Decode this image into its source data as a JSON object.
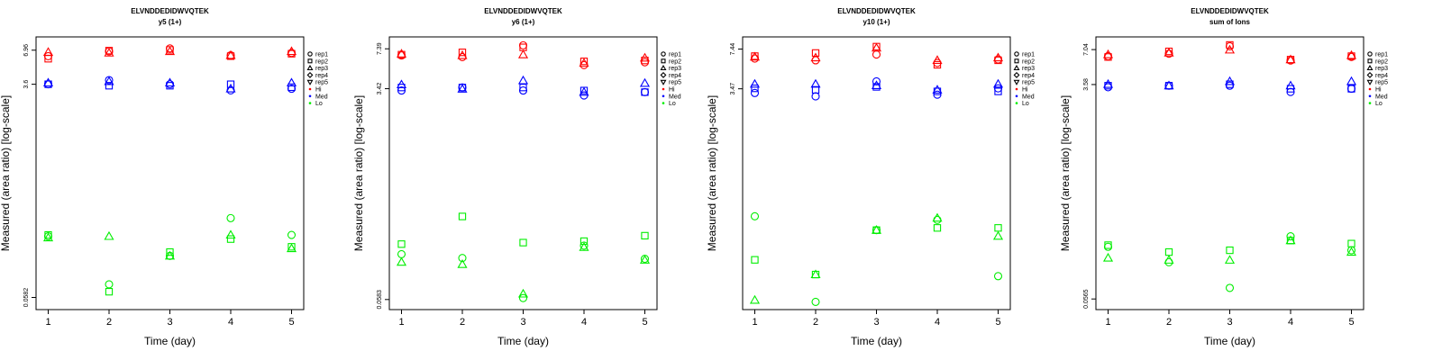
{
  "figure": {
    "colors": {
      "Hi": "#ff0000",
      "Med": "#0000ff",
      "Lo": "#00ee00"
    },
    "legend": [
      {
        "label": "rep1",
        "symbol": "circle"
      },
      {
        "label": "rep2",
        "symbol": "square"
      },
      {
        "label": "rep3",
        "symbol": "triangle-up"
      },
      {
        "label": "rep4",
        "symbol": "diamond"
      },
      {
        "label": "rep5",
        "symbol": "triangle-down"
      },
      {
        "label": "Hi",
        "symbol": "dot",
        "color": "Hi"
      },
      {
        "label": "Med",
        "symbol": "dot",
        "color": "Med"
      },
      {
        "label": "Lo",
        "symbol": "dot",
        "color": "Lo"
      }
    ]
  },
  "chart_data": [
    {
      "type": "scatter",
      "title": "ELVNDDEDIDWVQTEK",
      "subtitle": "y5 (1+)",
      "xlabel": "Time (day)",
      "ylabel": "Measured (area ratio) [log-scale]",
      "y_scale": "log",
      "x_ticks": [
        1,
        2,
        3,
        4,
        5
      ],
      "y_ticks": [
        0.0582,
        3.6,
        6.96
      ],
      "xlim": [
        0.8,
        5.2
      ],
      "ylim": [
        0.046,
        9.0
      ],
      "legend_position": "right",
      "series": [
        {
          "group": "Hi",
          "replicate": "rep1",
          "x": [
            1,
            2,
            3,
            4,
            5
          ],
          "y": [
            6.2,
            6.8,
            7.2,
            6.3,
            6.6
          ]
        },
        {
          "group": "Hi",
          "replicate": "rep2",
          "x": [
            1,
            2,
            3,
            4,
            5
          ],
          "y": [
            5.9,
            6.9,
            7.0,
            6.2,
            6.5
          ]
        },
        {
          "group": "Hi",
          "replicate": "rep3",
          "x": [
            1,
            2,
            3,
            4,
            5
          ],
          "y": [
            6.7,
            6.6,
            6.8,
            6.3,
            6.8
          ]
        },
        {
          "group": "Med",
          "replicate": "rep1",
          "x": [
            1,
            2,
            3,
            4,
            5
          ],
          "y": [
            3.6,
            3.9,
            3.6,
            3.2,
            3.3
          ]
        },
        {
          "group": "Med",
          "replicate": "rep2",
          "x": [
            1,
            2,
            3,
            4,
            5
          ],
          "y": [
            3.6,
            3.5,
            3.5,
            3.6,
            3.4
          ]
        },
        {
          "group": "Med",
          "replicate": "rep3",
          "x": [
            1,
            2,
            3,
            4,
            5
          ],
          "y": [
            3.7,
            3.8,
            3.7,
            3.3,
            3.7
          ]
        },
        {
          "group": "Lo",
          "replicate": "rep1",
          "x": [
            1,
            2,
            3,
            4,
            5
          ],
          "y": [
            0.19,
            0.075,
            0.13,
            0.27,
            0.195
          ]
        },
        {
          "group": "Lo",
          "replicate": "rep2",
          "x": [
            1,
            2,
            3,
            4,
            5
          ],
          "y": [
            0.195,
            0.065,
            0.14,
            0.18,
            0.155
          ]
        },
        {
          "group": "Lo",
          "replicate": "rep3",
          "x": [
            1,
            2,
            3,
            4,
            5
          ],
          "y": [
            0.185,
            0.19,
            0.13,
            0.195,
            0.15
          ]
        }
      ]
    },
    {
      "type": "scatter",
      "title": "ELVNDDEDIDWVQTEK",
      "subtitle": "y6 (1+)",
      "xlabel": "Time (day)",
      "ylabel": "Measured (area ratio) [log-scale]",
      "y_scale": "log",
      "x_ticks": [
        1,
        2,
        3,
        4,
        5
      ],
      "y_ticks": [
        0.0583,
        3.42,
        7.39
      ],
      "xlim": [
        0.8,
        5.2
      ],
      "ylim": [
        0.048,
        9.3
      ],
      "legend_position": "right",
      "series": [
        {
          "group": "Hi",
          "replicate": "rep1",
          "x": [
            1,
            2,
            3,
            4,
            5
          ],
          "y": [
            6.5,
            6.3,
            7.9,
            5.4,
            5.7
          ]
        },
        {
          "group": "Hi",
          "replicate": "rep2",
          "x": [
            1,
            2,
            3,
            4,
            5
          ],
          "y": [
            6.6,
            6.9,
            7.6,
            5.8,
            5.9
          ]
        },
        {
          "group": "Hi",
          "replicate": "rep3",
          "x": [
            1,
            2,
            3,
            4,
            5
          ],
          "y": [
            6.7,
            6.5,
            6.6,
            5.6,
            6.2
          ]
        },
        {
          "group": "Med",
          "replicate": "rep1",
          "x": [
            1,
            2,
            3,
            4,
            5
          ],
          "y": [
            3.3,
            3.5,
            3.3,
            3.0,
            3.2
          ]
        },
        {
          "group": "Med",
          "replicate": "rep2",
          "x": [
            1,
            2,
            3,
            4,
            5
          ],
          "y": [
            3.5,
            3.5,
            3.5,
            3.3,
            3.2
          ]
        },
        {
          "group": "Med",
          "replicate": "rep3",
          "x": [
            1,
            2,
            3,
            4,
            5
          ],
          "y": [
            3.7,
            3.4,
            4.0,
            3.2,
            3.8
          ]
        },
        {
          "group": "Lo",
          "replicate": "rep1",
          "x": [
            1,
            2,
            3,
            4,
            5
          ],
          "y": [
            0.14,
            0.13,
            0.06,
            0.165,
            0.128
          ]
        },
        {
          "group": "Lo",
          "replicate": "rep2",
          "x": [
            1,
            2,
            3,
            4,
            5
          ],
          "y": [
            0.17,
            0.29,
            0.175,
            0.18,
            0.2
          ]
        },
        {
          "group": "Lo",
          "replicate": "rep3",
          "x": [
            1,
            2,
            3,
            4,
            5
          ],
          "y": [
            0.12,
            0.115,
            0.065,
            0.16,
            0.125
          ]
        }
      ]
    },
    {
      "type": "scatter",
      "title": "ELVNDDEDIDWVQTEK",
      "subtitle": "y10 (1+)",
      "xlabel": "Time (day)",
      "ylabel": "Measured (area ratio) [log-scale]",
      "y_scale": "log",
      "x_ticks": [
        1,
        2,
        3,
        4,
        5
      ],
      "y_ticks": [
        3.47,
        7.44
      ],
      "xlim": [
        0.8,
        5.2
      ],
      "ylim": [
        0.05,
        9.4
      ],
      "legend_position": "right",
      "series": [
        {
          "group": "Hi",
          "replicate": "rep1",
          "x": [
            1,
            2,
            3,
            4,
            5
          ],
          "y": [
            6.2,
            6.0,
            6.7,
            5.7,
            6.1
          ]
        },
        {
          "group": "Hi",
          "replicate": "rep2",
          "x": [
            1,
            2,
            3,
            4,
            5
          ],
          "y": [
            6.5,
            6.9,
            7.8,
            5.5,
            6.0
          ]
        },
        {
          "group": "Hi",
          "replicate": "rep3",
          "x": [
            1,
            2,
            3,
            4,
            5
          ],
          "y": [
            6.4,
            6.3,
            7.6,
            6.0,
            6.3
          ]
        },
        {
          "group": "Med",
          "replicate": "rep1",
          "x": [
            1,
            2,
            3,
            4,
            5
          ],
          "y": [
            3.2,
            3.0,
            4.0,
            3.1,
            3.5
          ]
        },
        {
          "group": "Med",
          "replicate": "rep2",
          "x": [
            1,
            2,
            3,
            4,
            5
          ],
          "y": [
            3.5,
            3.4,
            3.6,
            3.3,
            3.3
          ]
        },
        {
          "group": "Med",
          "replicate": "rep3",
          "x": [
            1,
            2,
            3,
            4,
            5
          ],
          "y": [
            3.8,
            3.8,
            3.7,
            3.4,
            3.8
          ]
        },
        {
          "group": "Lo",
          "replicate": "rep1",
          "x": [
            1,
            2,
            3,
            4,
            5
          ],
          "y": [
            0.3,
            0.058,
            0.23,
            0.28,
            0.095
          ]
        },
        {
          "group": "Lo",
          "replicate": "rep2",
          "x": [
            1,
            2,
            3,
            4,
            5
          ],
          "y": [
            0.13,
            0.098,
            0.23,
            0.24,
            0.24
          ]
        },
        {
          "group": "Lo",
          "replicate": "rep3",
          "x": [
            1,
            2,
            3,
            4,
            5
          ],
          "y": [
            0.06,
            0.098,
            0.23,
            0.29,
            0.205
          ]
        }
      ]
    },
    {
      "type": "scatter",
      "title": "ELVNDDEDIDWVQTEK",
      "subtitle": "sum of Ions",
      "xlabel": "Time (day)",
      "ylabel": "Measured (area ratio) [log-scale]",
      "y_scale": "log",
      "x_ticks": [
        1,
        2,
        3,
        4,
        5
      ],
      "y_ticks": [
        0.0565,
        3.58,
        7.04
      ],
      "xlim": [
        0.8,
        5.2
      ],
      "ylim": [
        0.046,
        9.0
      ],
      "legend_position": "right",
      "series": [
        {
          "group": "Hi",
          "replicate": "rep1",
          "x": [
            1,
            2,
            3,
            4,
            5
          ],
          "y": [
            6.2,
            6.5,
            7.5,
            5.7,
            6.1
          ]
        },
        {
          "group": "Hi",
          "replicate": "rep2",
          "x": [
            1,
            2,
            3,
            4,
            5
          ],
          "y": [
            6.1,
            6.8,
            7.7,
            5.8,
            6.2
          ]
        },
        {
          "group": "Hi",
          "replicate": "rep3",
          "x": [
            1,
            2,
            3,
            4,
            5
          ],
          "y": [
            6.4,
            6.6,
            7.0,
            5.8,
            6.3
          ]
        },
        {
          "group": "Med",
          "replicate": "rep1",
          "x": [
            1,
            2,
            3,
            4,
            5
          ],
          "y": [
            3.4,
            3.5,
            3.5,
            3.1,
            3.3
          ]
        },
        {
          "group": "Med",
          "replicate": "rep2",
          "x": [
            1,
            2,
            3,
            4,
            5
          ],
          "y": [
            3.5,
            3.5,
            3.6,
            3.3,
            3.3
          ]
        },
        {
          "group": "Med",
          "replicate": "rep3",
          "x": [
            1,
            2,
            3,
            4,
            5
          ],
          "y": [
            3.6,
            3.5,
            3.8,
            3.5,
            3.8
          ]
        },
        {
          "group": "Lo",
          "replicate": "rep1",
          "x": [
            1,
            2,
            3,
            4,
            5
          ],
          "y": [
            0.155,
            0.115,
            0.07,
            0.19,
            0.145
          ]
        },
        {
          "group": "Lo",
          "replicate": "rep2",
          "x": [
            1,
            2,
            3,
            4,
            5
          ],
          "y": [
            0.16,
            0.14,
            0.145,
            0.175,
            0.165
          ]
        },
        {
          "group": "Lo",
          "replicate": "rep3",
          "x": [
            1,
            2,
            3,
            4,
            5
          ],
          "y": [
            0.125,
            0.12,
            0.12,
            0.175,
            0.14
          ]
        }
      ]
    }
  ]
}
